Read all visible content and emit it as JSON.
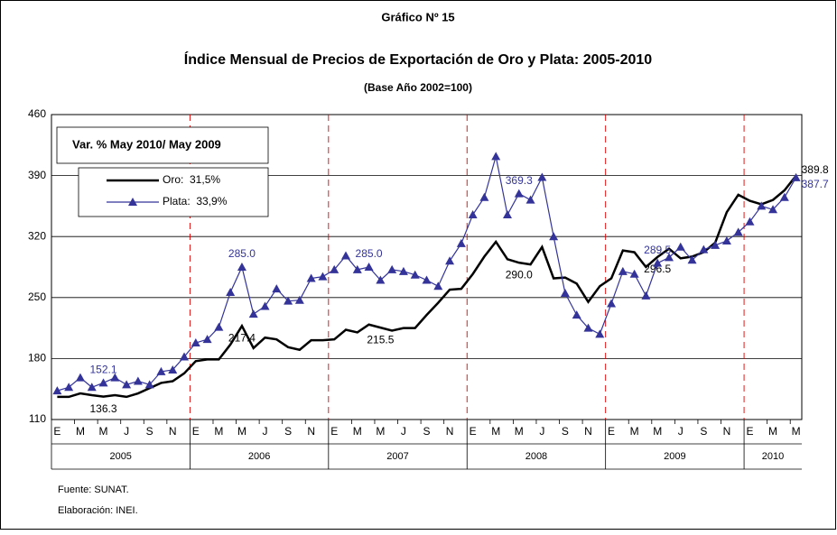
{
  "chart_data": {
    "type": "line",
    "supertitle": "Gráfico Nº 15",
    "title": "Índice Mensual de Precios de Exportación de Oro y Plata: 2005-2010",
    "subtitle": "(Base Año 2002=100)",
    "legend_title": "Var. % May 2010/ May 2009",
    "categories": [
      "E",
      null,
      "M",
      null,
      "M",
      null,
      "J",
      null,
      "S",
      null,
      "N",
      null,
      "E",
      null,
      "M",
      null,
      "M",
      null,
      "J",
      null,
      "S",
      null,
      "N",
      null,
      "E",
      null,
      "M",
      null,
      "M",
      null,
      "J",
      null,
      "S",
      null,
      "N",
      null,
      "E",
      null,
      "M",
      null,
      "M",
      null,
      "J",
      null,
      "S",
      null,
      "N",
      null,
      "E",
      null,
      "M",
      null,
      "M",
      null,
      "J",
      null,
      "S",
      null,
      "N",
      null,
      "E",
      null,
      "M",
      null,
      "M"
    ],
    "years": [
      "2005",
      "2006",
      "2007",
      "2008",
      "2009",
      "2010"
    ],
    "series": [
      {
        "name": "Oro:  31,5%",
        "color": "#000000",
        "values": [
          136,
          136,
          140,
          138,
          136.3,
          138,
          136,
          140,
          146,
          152,
          154,
          163,
          177,
          179,
          179,
          196,
          217.4,
          192,
          204,
          202,
          193,
          190,
          201,
          201,
          202,
          213,
          210,
          219,
          215.5,
          212,
          215,
          215,
          230,
          244,
          259,
          260,
          277,
          297,
          314,
          294,
          290.0,
          288,
          308,
          272,
          273,
          266,
          245,
          263,
          272,
          304,
          302,
          285,
          296.5,
          306,
          295,
          297,
          302,
          313,
          348,
          368,
          361,
          357,
          362,
          373,
          389.8
        ],
        "value_labels": [
          null,
          null,
          null,
          null,
          "136.3",
          null,
          null,
          null,
          null,
          null,
          null,
          null,
          null,
          null,
          null,
          null,
          "217.4",
          null,
          null,
          null,
          null,
          null,
          null,
          null,
          null,
          null,
          null,
          null,
          "215.5",
          null,
          null,
          null,
          null,
          null,
          null,
          null,
          null,
          null,
          null,
          null,
          "290.0",
          null,
          null,
          null,
          null,
          null,
          null,
          null,
          null,
          null,
          null,
          null,
          "296.5",
          null,
          null,
          null,
          null,
          null,
          null,
          null,
          null,
          null,
          null,
          null,
          "389.8"
        ]
      },
      {
        "name": "Plata:  33,9%",
        "color": "#333399",
        "values": [
          143,
          147,
          158,
          147,
          152.1,
          158,
          150,
          154,
          150,
          165,
          167,
          182,
          198,
          202,
          216,
          256,
          285.0,
          231,
          240,
          260,
          246,
          247,
          272,
          274,
          282,
          298,
          282,
          285.0,
          270,
          282,
          280,
          276,
          270,
          263,
          292,
          312,
          345,
          365,
          412,
          345,
          369.3,
          362,
          388,
          320,
          255,
          230,
          215,
          208,
          243,
          280,
          277,
          252,
          289.5,
          296,
          308,
          293,
          305,
          310,
          315,
          325,
          337,
          355,
          351,
          365,
          387.7
        ],
        "value_labels": [
          null,
          null,
          null,
          null,
          "152.1",
          null,
          null,
          null,
          null,
          null,
          null,
          null,
          null,
          null,
          null,
          null,
          "285.0",
          null,
          null,
          null,
          null,
          null,
          null,
          null,
          null,
          null,
          null,
          "285.0",
          null,
          null,
          null,
          null,
          null,
          null,
          null,
          null,
          null,
          null,
          null,
          null,
          "369.3",
          null,
          null,
          null,
          null,
          null,
          null,
          null,
          null,
          null,
          null,
          null,
          "289.5",
          null,
          null,
          null,
          null,
          null,
          null,
          null,
          null,
          null,
          null,
          null,
          "387.7"
        ]
      }
    ],
    "ylim": [
      110,
      460
    ],
    "yticks": [
      110,
      180,
      250,
      320,
      390,
      460
    ],
    "grid": true,
    "legend": "upper left",
    "source": "Fuente: SUNAT.",
    "credit": "Elaboración: INEI."
  }
}
